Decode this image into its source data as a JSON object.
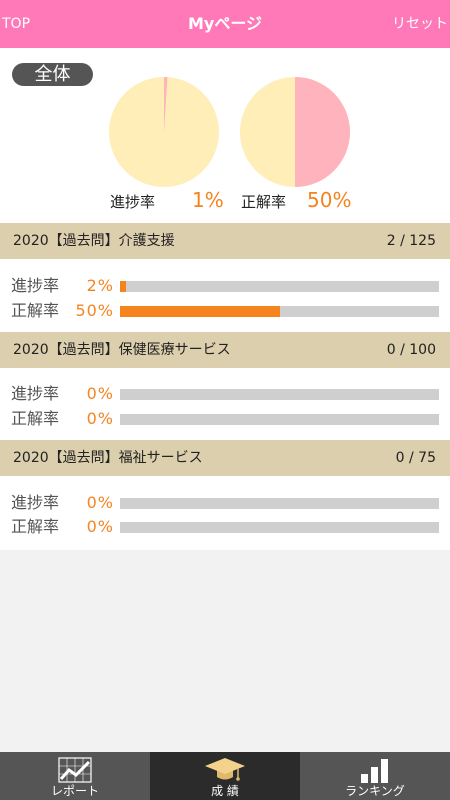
{
  "header": {
    "left": "TOP",
    "title": "Myページ",
    "right": "リセット",
    "color": "#ff78b7"
  },
  "overall": {
    "badge": "全体",
    "progress_label": "進捗率",
    "progress_value": "1%",
    "progress_fraction": 0.01,
    "accuracy_label": "正解率",
    "accuracy_value": "50%",
    "accuracy_fraction": 0.5,
    "pie_base_color": "#ffeeb8",
    "pie_fill_color": "#ffb3bd"
  },
  "sections": [
    {
      "title": "2020【過去問】介護支援",
      "count": "2 / 125",
      "progress_label": "進捗率",
      "progress_value": "2%",
      "progress_fraction": 0.02,
      "accuracy_label": "正解率",
      "accuracy_value": "50%",
      "accuracy_fraction": 0.5
    },
    {
      "title": "2020【過去問】保健医療サービス",
      "count": "0 / 100",
      "progress_label": "進捗率",
      "progress_value": "0%",
      "progress_fraction": 0,
      "accuracy_label": "正解率",
      "accuracy_value": "0%",
      "accuracy_fraction": 0
    },
    {
      "title": "2020【過去問】福祉サービス",
      "count": "0 / 75",
      "progress_label": "進捗率",
      "progress_value": "0%",
      "progress_fraction": 0,
      "accuracy_label": "正解率",
      "accuracy_value": "0%",
      "accuracy_fraction": 0
    }
  ],
  "tabs": [
    {
      "label": "レポート",
      "icon": "report-chart-icon",
      "active": false
    },
    {
      "label": "成 績",
      "icon": "graduation-cap-icon",
      "active": true
    },
    {
      "label": "ランキング",
      "icon": "ranking-bars-icon",
      "active": false
    }
  ],
  "colors": {
    "accent": "#f5841f",
    "section_bg": "#dccfae",
    "bar_track": "#cfcfcf"
  }
}
